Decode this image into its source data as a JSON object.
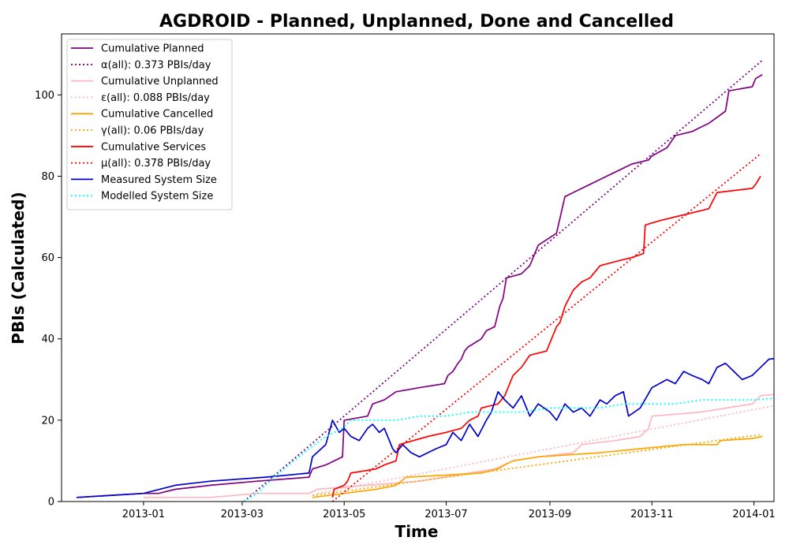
{
  "chart_data": {
    "type": "line",
    "title": "AGDROID - Planned, Unplanned, Done  and Cancelled",
    "xlabel": "Time",
    "ylabel": "PBIs (Calculated)",
    "xlim": [
      "2012-11-13",
      "2014-01-13"
    ],
    "ylim": [
      0,
      115
    ],
    "x_ticks": [
      "2013-01",
      "2013-03",
      "2013-05",
      "2013-07",
      "2013-09",
      "2013-11",
      "2014-01"
    ],
    "y_ticks": [
      0,
      20,
      40,
      60,
      80,
      100
    ],
    "grid": false,
    "legend_position": "upper-left",
    "series": [
      {
        "name": "Cumulative Planned",
        "color": "#800080",
        "style": "solid",
        "points": [
          [
            "2012-11-22",
            1
          ],
          [
            "2013-01-01",
            2
          ],
          [
            "2013-01-10",
            2
          ],
          [
            "2013-01-20",
            3
          ],
          [
            "2013-02-10",
            4
          ],
          [
            "2013-03-10",
            5
          ],
          [
            "2013-04-10",
            6
          ],
          [
            "2013-04-12",
            8
          ],
          [
            "2013-04-20",
            9
          ],
          [
            "2013-04-30",
            11
          ],
          [
            "2013-05-01",
            20
          ],
          [
            "2013-05-15",
            21
          ],
          [
            "2013-05-18",
            24
          ],
          [
            "2013-05-25",
            25
          ],
          [
            "2013-06-01",
            27
          ],
          [
            "2013-06-15",
            28
          ],
          [
            "2013-06-30",
            29
          ],
          [
            "2013-07-02",
            31
          ],
          [
            "2013-07-05",
            32
          ],
          [
            "2013-07-08",
            34
          ],
          [
            "2013-07-10",
            35
          ],
          [
            "2013-07-12",
            37
          ],
          [
            "2013-07-14",
            38
          ],
          [
            "2013-07-18",
            39
          ],
          [
            "2013-07-22",
            40
          ],
          [
            "2013-07-25",
            42
          ],
          [
            "2013-07-30",
            43
          ],
          [
            "2013-08-02",
            48
          ],
          [
            "2013-08-04",
            50
          ],
          [
            "2013-08-06",
            55
          ],
          [
            "2013-08-15",
            56
          ],
          [
            "2013-08-20",
            58
          ],
          [
            "2013-08-25",
            63
          ],
          [
            "2013-09-05",
            66
          ],
          [
            "2013-09-10",
            75
          ],
          [
            "2013-09-15",
            76
          ],
          [
            "2013-09-25",
            78
          ],
          [
            "2013-09-30",
            79
          ],
          [
            "2013-10-10",
            81
          ],
          [
            "2013-10-20",
            83
          ],
          [
            "2013-10-30",
            84
          ],
          [
            "2013-11-01",
            85
          ],
          [
            "2013-11-10",
            87
          ],
          [
            "2013-11-15",
            90
          ],
          [
            "2013-11-25",
            91
          ],
          [
            "2013-12-05",
            93
          ],
          [
            "2013-12-15",
            96
          ],
          [
            "2013-12-17",
            101
          ],
          [
            "2013-12-31",
            102
          ],
          [
            "2014-01-02",
            104
          ],
          [
            "2014-01-06",
            105
          ]
        ]
      },
      {
        "name": "α(all): 0.373 PBIs/day",
        "color": "#800080",
        "style": "dotted",
        "points": [
          [
            "2013-03-02",
            0
          ],
          [
            "2014-01-06",
            108.5
          ]
        ]
      },
      {
        "name": "Cumulative Unplanned",
        "color": "#ffb6c1",
        "style": "solid",
        "points": [
          [
            "2013-01-01",
            1
          ],
          [
            "2013-02-10",
            1
          ],
          [
            "2013-03-10",
            2
          ],
          [
            "2013-04-10",
            2
          ],
          [
            "2013-04-15",
            3
          ],
          [
            "2013-05-15",
            4
          ],
          [
            "2013-06-15",
            5
          ],
          [
            "2013-07-15",
            7
          ],
          [
            "2013-07-30",
            8
          ],
          [
            "2013-08-10",
            10
          ],
          [
            "2013-08-25",
            11
          ],
          [
            "2013-09-15",
            12
          ],
          [
            "2013-09-20",
            14
          ],
          [
            "2013-10-10",
            15
          ],
          [
            "2013-10-25",
            16
          ],
          [
            "2013-10-30",
            18
          ],
          [
            "2013-11-01",
            21
          ],
          [
            "2013-11-30",
            22
          ],
          [
            "2013-12-31",
            24
          ],
          [
            "2014-01-05",
            26
          ],
          [
            "2014-01-31",
            27
          ]
        ]
      },
      {
        "name": "ε(all): 0.088 PBIs/day",
        "color": "#ffb6c1",
        "style": "dotted",
        "points": [
          [
            "2013-04-15",
            2
          ],
          [
            "2014-01-31",
            25
          ]
        ]
      },
      {
        "name": "Cumulative Cancelled",
        "color": "#ffa500",
        "style": "solid",
        "points": [
          [
            "2013-04-12",
            1
          ],
          [
            "2013-05-01",
            2
          ],
          [
            "2013-05-20",
            3
          ],
          [
            "2013-06-01",
            4
          ],
          [
            "2013-06-07",
            6
          ],
          [
            "2013-07-01",
            6.5
          ],
          [
            "2013-07-22",
            7
          ],
          [
            "2013-08-01",
            8
          ],
          [
            "2013-08-05",
            9
          ],
          [
            "2013-08-10",
            10
          ],
          [
            "2013-08-25",
            11
          ],
          [
            "2013-10-01",
            12
          ],
          [
            "2013-10-25",
            13
          ],
          [
            "2013-11-20",
            14
          ],
          [
            "2013-12-10",
            14
          ],
          [
            "2013-12-12",
            15
          ],
          [
            "2013-12-31",
            15.5
          ],
          [
            "2014-01-06",
            16
          ]
        ]
      },
      {
        "name": "γ(all): 0.06 PBIs/day",
        "color": "#ffa500",
        "style": "dotted",
        "points": [
          [
            "2013-04-12",
            1.5
          ],
          [
            "2014-01-06",
            16.5
          ]
        ]
      },
      {
        "name": "Cumulative Services",
        "color": "#ff0000",
        "style": "solid",
        "points": [
          [
            "2013-04-24",
            1
          ],
          [
            "2013-04-25",
            3
          ],
          [
            "2013-05-01",
            4
          ],
          [
            "2013-05-03",
            5
          ],
          [
            "2013-05-05",
            7
          ],
          [
            "2013-05-20",
            8
          ],
          [
            "2013-05-25",
            9
          ],
          [
            "2013-06-01",
            10
          ],
          [
            "2013-06-03",
            14
          ],
          [
            "2013-06-20",
            16
          ],
          [
            "2013-07-01",
            17
          ],
          [
            "2013-07-10",
            18
          ],
          [
            "2013-07-15",
            20
          ],
          [
            "2013-07-20",
            21
          ],
          [
            "2013-07-22",
            23
          ],
          [
            "2013-08-01",
            24
          ],
          [
            "2013-08-05",
            26
          ],
          [
            "2013-08-06",
            27
          ],
          [
            "2013-08-10",
            31
          ],
          [
            "2013-08-15",
            33
          ],
          [
            "2013-08-20",
            36
          ],
          [
            "2013-08-30",
            37
          ],
          [
            "2013-09-05",
            43
          ],
          [
            "2013-09-07",
            44
          ],
          [
            "2013-09-10",
            48
          ],
          [
            "2013-09-15",
            52
          ],
          [
            "2013-09-20",
            54
          ],
          [
            "2013-09-25",
            55
          ],
          [
            "2013-10-01",
            58
          ],
          [
            "2013-10-10",
            59
          ],
          [
            "2013-10-20",
            60
          ],
          [
            "2013-10-27",
            61
          ],
          [
            "2013-10-28",
            68
          ],
          [
            "2013-11-05",
            69
          ],
          [
            "2013-11-15",
            70
          ],
          [
            "2013-11-25",
            71
          ],
          [
            "2013-12-05",
            72
          ],
          [
            "2013-12-10",
            76
          ],
          [
            "2013-12-31",
            77
          ],
          [
            "2014-01-02",
            78
          ],
          [
            "2014-01-05",
            80
          ]
        ]
      },
      {
        "name": "μ(all): 0.378 PBIs/day",
        "color": "#ff0000",
        "style": "dotted",
        "points": [
          [
            "2013-04-24",
            0
          ],
          [
            "2014-01-05",
            85.5
          ]
        ]
      },
      {
        "name": "Measured System Size",
        "color": "#0000cd",
        "style": "solid",
        "points": [
          [
            "2012-11-22",
            1
          ],
          [
            "2013-01-01",
            2
          ],
          [
            "2013-01-20",
            4
          ],
          [
            "2013-02-10",
            5
          ],
          [
            "2013-03-15",
            6
          ],
          [
            "2013-04-10",
            7
          ],
          [
            "2013-04-12",
            11
          ],
          [
            "2013-04-20",
            14
          ],
          [
            "2013-04-24",
            20
          ],
          [
            "2013-04-28",
            17
          ],
          [
            "2013-05-01",
            18
          ],
          [
            "2013-05-05",
            16
          ],
          [
            "2013-05-10",
            15
          ],
          [
            "2013-05-15",
            18
          ],
          [
            "2013-05-18",
            19
          ],
          [
            "2013-05-22",
            17
          ],
          [
            "2013-05-25",
            18
          ],
          [
            "2013-05-30",
            13
          ],
          [
            "2013-06-01",
            12
          ],
          [
            "2013-06-05",
            14
          ],
          [
            "2013-06-10",
            12
          ],
          [
            "2013-06-15",
            11
          ],
          [
            "2013-06-20",
            12
          ],
          [
            "2013-06-25",
            13
          ],
          [
            "2013-07-01",
            14
          ],
          [
            "2013-07-05",
            17
          ],
          [
            "2013-07-10",
            15
          ],
          [
            "2013-07-15",
            19
          ],
          [
            "2013-07-20",
            16
          ],
          [
            "2013-07-25",
            20
          ],
          [
            "2013-07-28",
            22
          ],
          [
            "2013-08-01",
            27
          ],
          [
            "2013-08-05",
            25
          ],
          [
            "2013-08-10",
            23
          ],
          [
            "2013-08-15",
            26
          ],
          [
            "2013-08-20",
            21
          ],
          [
            "2013-08-25",
            24
          ],
          [
            "2013-09-01",
            22
          ],
          [
            "2013-09-05",
            20
          ],
          [
            "2013-09-10",
            24
          ],
          [
            "2013-09-15",
            22
          ],
          [
            "2013-09-20",
            23
          ],
          [
            "2013-09-25",
            21
          ],
          [
            "2013-10-01",
            25
          ],
          [
            "2013-10-05",
            24
          ],
          [
            "2013-10-10",
            26
          ],
          [
            "2013-10-15",
            27
          ],
          [
            "2013-10-18",
            21
          ],
          [
            "2013-10-25",
            23
          ],
          [
            "2013-11-01",
            28
          ],
          [
            "2013-11-10",
            30
          ],
          [
            "2013-11-15",
            29
          ],
          [
            "2013-11-20",
            32
          ],
          [
            "2013-11-25",
            31
          ],
          [
            "2013-12-01",
            30
          ],
          [
            "2013-12-05",
            29
          ],
          [
            "2013-12-10",
            33
          ],
          [
            "2013-12-15",
            34
          ],
          [
            "2013-12-20",
            32
          ],
          [
            "2013-12-25",
            30
          ],
          [
            "2013-12-31",
            31
          ],
          [
            "2014-01-05",
            33
          ],
          [
            "2014-01-10",
            35
          ],
          [
            "2014-01-20",
            35.5
          ],
          [
            "2014-01-31",
            36
          ]
        ]
      },
      {
        "name": "Modelled System Size",
        "color": "#00ffff",
        "style": "dotted",
        "points": [
          [
            "2013-03-02",
            0
          ],
          [
            "2013-03-10",
            2
          ],
          [
            "2013-03-20",
            6
          ],
          [
            "2013-04-01",
            10
          ],
          [
            "2013-04-10",
            13
          ],
          [
            "2013-04-20",
            16
          ],
          [
            "2013-04-30",
            18
          ],
          [
            "2013-05-05",
            20
          ],
          [
            "2013-05-15",
            20
          ],
          [
            "2013-06-01",
            20
          ],
          [
            "2013-06-15",
            21
          ],
          [
            "2013-07-01",
            21
          ],
          [
            "2013-07-15",
            22
          ],
          [
            "2013-08-01",
            22
          ],
          [
            "2013-08-15",
            22
          ],
          [
            "2013-09-01",
            23
          ],
          [
            "2013-09-15",
            23
          ],
          [
            "2013-10-01",
            23
          ],
          [
            "2013-10-15",
            24
          ],
          [
            "2013-11-01",
            24
          ],
          [
            "2013-11-15",
            24
          ],
          [
            "2013-12-01",
            25
          ],
          [
            "2013-12-15",
            25
          ],
          [
            "2014-01-01",
            25
          ],
          [
            "2014-01-31",
            26
          ]
        ]
      }
    ]
  }
}
